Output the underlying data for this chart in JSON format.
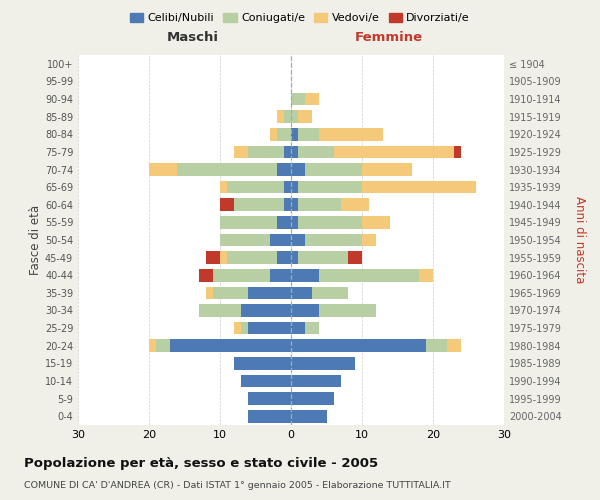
{
  "age_groups": [
    "100+",
    "95-99",
    "90-94",
    "85-89",
    "80-84",
    "75-79",
    "70-74",
    "65-69",
    "60-64",
    "55-59",
    "50-54",
    "45-49",
    "40-44",
    "35-39",
    "30-34",
    "25-29",
    "20-24",
    "15-19",
    "10-14",
    "5-9",
    "0-4"
  ],
  "birth_years": [
    "≤ 1904",
    "1905-1909",
    "1910-1914",
    "1915-1919",
    "1920-1924",
    "1925-1929",
    "1930-1934",
    "1935-1939",
    "1940-1944",
    "1945-1949",
    "1950-1954",
    "1955-1959",
    "1960-1964",
    "1965-1969",
    "1970-1974",
    "1975-1979",
    "1980-1984",
    "1985-1989",
    "1990-1994",
    "1995-1999",
    "2000-2004"
  ],
  "males": {
    "celibi": [
      0,
      0,
      0,
      0,
      0,
      1,
      2,
      1,
      1,
      2,
      3,
      2,
      3,
      6,
      7,
      6,
      17,
      8,
      7,
      6,
      6
    ],
    "coniugati": [
      0,
      0,
      0,
      1,
      2,
      5,
      14,
      8,
      7,
      8,
      7,
      7,
      8,
      5,
      6,
      1,
      2,
      0,
      0,
      0,
      0
    ],
    "vedovi": [
      0,
      0,
      0,
      1,
      1,
      2,
      4,
      1,
      0,
      0,
      0,
      1,
      0,
      1,
      0,
      1,
      1,
      0,
      0,
      0,
      0
    ],
    "divorziati": [
      0,
      0,
      0,
      0,
      0,
      0,
      0,
      0,
      2,
      0,
      0,
      2,
      2,
      0,
      0,
      0,
      0,
      0,
      0,
      0,
      0
    ]
  },
  "females": {
    "nubili": [
      0,
      0,
      0,
      0,
      1,
      1,
      2,
      1,
      1,
      1,
      2,
      1,
      4,
      3,
      4,
      2,
      19,
      9,
      7,
      6,
      5
    ],
    "coniugate": [
      0,
      0,
      2,
      1,
      3,
      5,
      8,
      9,
      6,
      9,
      8,
      7,
      14,
      5,
      8,
      2,
      3,
      0,
      0,
      0,
      0
    ],
    "vedove": [
      0,
      0,
      2,
      2,
      9,
      17,
      7,
      16,
      4,
      4,
      2,
      0,
      2,
      0,
      0,
      0,
      2,
      0,
      0,
      0,
      0
    ],
    "divorziate": [
      0,
      0,
      0,
      0,
      0,
      1,
      0,
      0,
      0,
      0,
      0,
      2,
      0,
      0,
      0,
      0,
      0,
      0,
      0,
      0,
      0
    ]
  },
  "colors": {
    "celibi": "#4d7ab5",
    "coniugati": "#b8cfa4",
    "vedovi": "#f5c97a",
    "divorziati": "#c0392b"
  },
  "xlim": 30,
  "title": "Popolazione per età, sesso e stato civile - 2005",
  "subtitle": "COMUNE DI CA' D'ANDREA (CR) - Dati ISTAT 1° gennaio 2005 - Elaborazione TUTTITALIA.IT",
  "ylabel_left": "Fasce di età",
  "ylabel_right": "Anni di nascita",
  "xlabel_left": "Maschi",
  "xlabel_right": "Femmine",
  "legend_labels": [
    "Celibi/Nubili",
    "Coniugati/e",
    "Vedovi/e",
    "Divorziati/e"
  ],
  "background_color": "#f0f0e8",
  "bar_background": "#ffffff"
}
